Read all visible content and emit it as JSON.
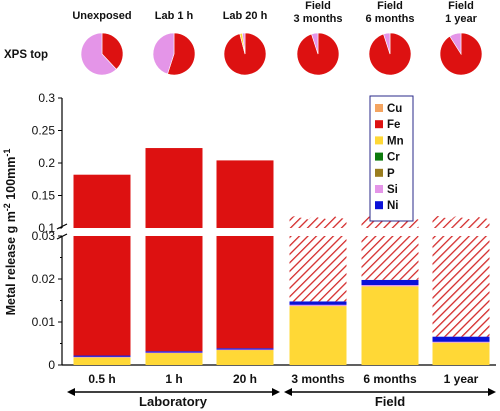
{
  "chart_data": {
    "type": "bar",
    "stacked": true,
    "broken_y_axis": true,
    "ylabel": "Metal release g m",
    "ylabel_sup": "-2",
    "ylabel_tail": " 100mm",
    "ylabel_sup2": "-1",
    "upper_ylim": [
      0.1,
      0.3
    ],
    "lower_ylim": [
      0,
      0.03
    ],
    "upper_yticks": [
      "0.1",
      "0.15",
      "0.2",
      "0.25",
      "0.3"
    ],
    "lower_yticks": [
      "0",
      "0.01",
      "0.02",
      "0.03"
    ],
    "categories": [
      "0.5 h",
      "1 h",
      "20 h",
      "3 months",
      "6 months",
      "1 year"
    ],
    "groups": [
      {
        "label": "Laboratory",
        "indices": [
          0,
          1,
          2
        ]
      },
      {
        "label": "Field",
        "indices": [
          3,
          4,
          5
        ]
      }
    ],
    "pie_row_label": "XPS top",
    "pie_titles": [
      [
        "Unexposed"
      ],
      [
        "Lab 1 h"
      ],
      [
        "Lab 20 h"
      ],
      [
        "Field",
        "3 months"
      ],
      [
        "Field",
        "6 months"
      ],
      [
        "Field",
        "1 year"
      ]
    ],
    "pies": [
      [
        {
          "name": "Fe",
          "value": 0.38
        },
        {
          "name": "Si",
          "value": 0.62
        }
      ],
      [
        {
          "name": "Fe",
          "value": 0.55
        },
        {
          "name": "Si",
          "value": 0.45
        }
      ],
      [
        {
          "name": "Fe",
          "value": 0.96
        },
        {
          "name": "Mn",
          "value": 0.02
        },
        {
          "name": "Si",
          "value": 0.02
        }
      ],
      [
        {
          "name": "Fe",
          "value": 0.95
        },
        {
          "name": "Si",
          "value": 0.05
        }
      ],
      [
        {
          "name": "Fe",
          "value": 0.95
        },
        {
          "name": "Si",
          "value": 0.05
        }
      ],
      [
        {
          "name": "Fe",
          "value": 0.91
        },
        {
          "name": "Si",
          "value": 0.09
        }
      ]
    ],
    "legend": [
      "Cu",
      "Fe",
      "Mn",
      "Cr",
      "P",
      "Si",
      "Ni"
    ],
    "colors": {
      "Cu": "#f4a460",
      "Fe": "#dd1111",
      "Mn": "#ffd836",
      "Cr": "#0c7a0c",
      "P": "#9a7d1f",
      "Si": "#e495e8",
      "Ni": "#0b11d8"
    },
    "bars": [
      {
        "Mn": 0.0018,
        "Si": 0.0001,
        "Ni": 0.0003,
        "Fe": 0.182,
        "fe_hatched": false
      },
      {
        "Mn": 0.0028,
        "Si": 0.0001,
        "Ni": 0.0003,
        "Fe": 0.223,
        "fe_hatched": false
      },
      {
        "Mn": 0.0035,
        "Si": 0.0001,
        "Ni": 0.0003,
        "Fe": 0.204,
        "fe_hatched": false
      },
      {
        "Mn": 0.0137,
        "Si": 0.0003,
        "Ni": 0.0008,
        "Fe": 0.116,
        "fe_hatched": true
      },
      {
        "Mn": 0.0183,
        "Si": 0.0003,
        "Ni": 0.0012,
        "Fe": 0.116,
        "fe_hatched": true
      },
      {
        "Mn": 0.0052,
        "Si": 0.0002,
        "Ni": 0.0012,
        "Fe": 0.116,
        "fe_hatched": true
      }
    ]
  }
}
